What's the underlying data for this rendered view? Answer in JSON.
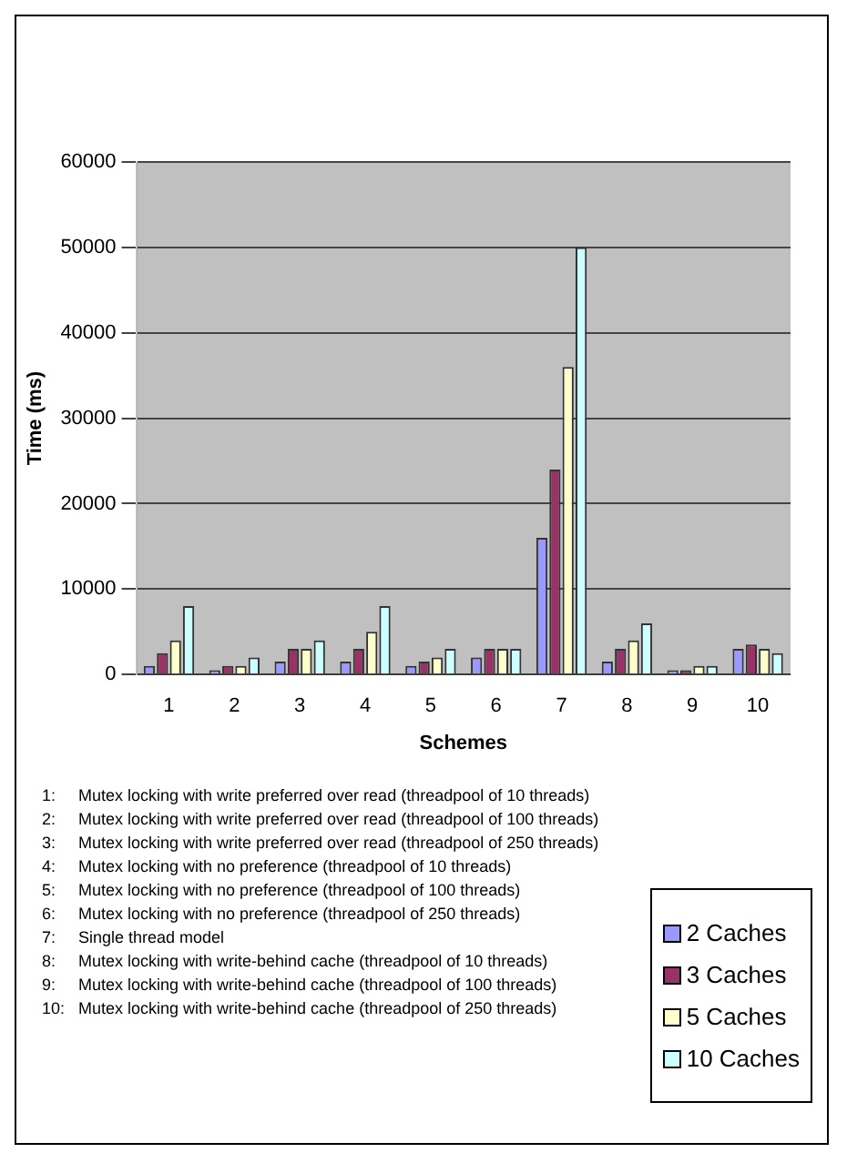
{
  "chart_data": {
    "type": "bar",
    "xlabel": "Schemes",
    "ylabel": "Time (ms)",
    "categories": [
      "1",
      "2",
      "3",
      "4",
      "5",
      "6",
      "7",
      "8",
      "9",
      "10"
    ],
    "series": [
      {
        "name": "2 Caches",
        "color": "#9999ff",
        "values": [
          1000,
          500,
          1500,
          1500,
          1000,
          2000,
          16000,
          1500,
          500,
          3000
        ]
      },
      {
        "name": "3 Caches",
        "color": "#993366",
        "values": [
          2500,
          1000,
          3000,
          3000,
          1500,
          3000,
          24000,
          3000,
          500,
          3500
        ]
      },
      {
        "name": "5 Caches",
        "color": "#ffffcc",
        "values": [
          4000,
          1000,
          3000,
          5000,
          2000,
          3000,
          36000,
          4000,
          1000,
          3000
        ]
      },
      {
        "name": "10 Caches",
        "color": "#ccffff",
        "values": [
          8000,
          2000,
          4000,
          8000,
          3000,
          3000,
          50000,
          6000,
          1000,
          2500
        ]
      }
    ],
    "ylim": [
      0,
      60000
    ],
    "yticks": [
      0,
      10000,
      20000,
      30000,
      40000,
      50000,
      60000
    ],
    "grid": "y",
    "legend": "bottom right",
    "annotations": [
      "1:\tMutex locking with write preferred over read (threadpool of 10 threads)",
      "2:\tMutex locking with write preferred over read (threadpool of 100 threads)",
      "3:\tMutex locking with write preferred over read (threadpool of 250 threads)",
      "4:\tMutex locking with no preference (threadpool of 10 threads)",
      "5:\tMutex locking with no preference (threadpool of 100 threads)",
      "6:\tMutex locking with no preference (threadpool of 250 threads)",
      "7:\tSingle thread model",
      "8:\tMutex locking with write-behind cache (threadpool of 10 threads)",
      "9:\tMutex locking with write-behind cache (threadpool of 100 threads)",
      "10:\tMutex locking with write-behind cache (threadpool of 250 threads)"
    ]
  }
}
